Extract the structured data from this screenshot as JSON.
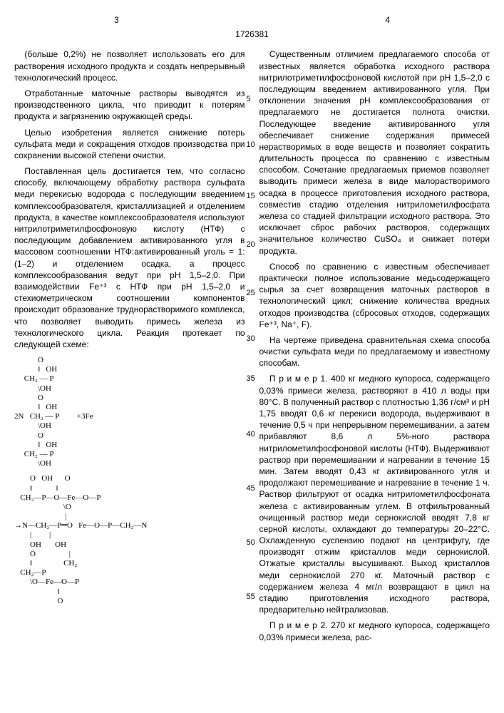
{
  "page_left_num": "3",
  "page_right_num": "4",
  "patent_number": "1726381",
  "left": {
    "p1": "(больше 0,2%) не позволяет использовать его для растворения исходного продукта и создать непрерывный технологический процесс.",
    "p2": "Отработанные маточные растворы выводятся из производственного цикла, что приводит к потерям продукта и загрязнению окружающей среды.",
    "p3": "Целью изобретения является снижение потерь сульфата меди и сокращения отходов производства при сохранении высокой степени очистки.",
    "p4": "Поставленная цель достигается тем, что согласно способу, включающему обработку раствора сульфата меди перекисью водорода с последующим введением комплексообразователя, кристаллизацией и отделением продукта, в качестве комплексообразователя используют нитрилотриметилфосфоновую кислоту (НТФ) с последующим добавлением активированного угля в массовом соотношении НТФ:активированный уголь = 1:(1–2) и отделением осадка, а процесс комплексообразования ведут при pH 1,5–2,0. При взаимодействии Fe⁺³ с НТФ при pH 1,5–2,0 и стехиометрическом соотношении компонентов происходит образование труднорастворимого комплекса, что позволяет выводить примесь железа из технологического цикла. Реакция протекает по следующей схеме:",
    "chem1": "            O\n            ‖   OH\n     CH₂ — P\n            \\OH\n            O\n            ‖   OH\n2N   CH₂ — P         +3Fe\n            \\OH\n            O\n            ‖   OH\n     CH₂ — P\n            \\OH",
    "chem2": "        O   OH      O\n        ‖            ‖\n   CH₂—P—O—Fe—O—P\n                         \\O\n                          |\n→N—CH₂—P═O   Fe—O—P—CH₂—N\n        |         |\n        OH       OH\n        O                 |\n        ‖                CH₂\n   CH₂—P\n        \\O—Fe—O—P\n                      ‖\n                      O"
  },
  "right": {
    "p1": "Существенным отличием предлагаемого способа от известных является обработка исходного раствора нитрилотриметилфосфоновой кислотой при pH 1,5–2,0 с последующим введением активированного угля. При отклонении значения pH комплексообразования от предлагаемого не достигается полнота очистки. Последующее введение активированного угля обеспечивает снижение содержания примесей нерастворимых в воде веществ и позволяет сократить длительность процесса по сравнению с известным способом. Сочетание предлагаемых приемов позволяет выводить примеси железа в виде малорастворимого осадка в процессе приготовления исходного раствора, совместив стадию отделения нитрилометилфосфата железа со стадией фильтрации исходного раствора. Это исключает сброс рабочих растворов, содержащих значительное количество CuSO₄ и снижает потери продукта.",
    "p2": "Способ по сравнению с известным обеспечивает практически полное использование медьсодержащего сырья за счет возвращения маточных растворов в технологический цикл; снижение количества вредных отходов производства (сбросовых отходов, содержащих Fe⁺³, Na⁺, F).",
    "p3": "На чертеже приведена сравнительная схема способа очистки сульфата меди по предлагаемому и известному способам.",
    "p4": "П р и м е р 1. 400 кг медного купороса, содержащего 0,03% примеси железа, растворяют в 410 л воды при 80°С. В полученный раствор с плотностью 1,36 г/см³ и pH 1,75 вводят 0,6 кг перекиси водорода, выдерживают в течение 0,5 ч при непрерывном перемешивании, а затем прибавляют 8,6 л 5%-ного раствора нитрилометилфосфоновой кислоты (НТФ). Выдерживают раствор при перемешивании и нагревании в течение 15 мин. Затем вводят 0,43 кг активированного угля и продолжают перемешивание и нагревание в течение 1 ч. Раствор фильтруют от осадка нитрилометилфосфоната железа с активированным углем. В отфильтрованный очищенный раствор меди сернокислой вводят 7,8 кг серной кислоты, охлаждают до температуры 20–22°С. Охлажденную суспензию подают на центрифугу, где производят отжим кристаллов меди сернокислой. Отжатые кристаллы высушивают. Выход кристаллов меди сернокислой 270 кг. Маточный раствор с содержанием железа 4 мг/л возвращают в цикл на стадию приготовления исходного раствора, предварительно нейтрализовав.",
    "p5": "П р и м е р 2. 270 кг медного купороса, содержащего 0,03% примеси железа, рас-"
  },
  "line_numbers": [
    "5",
    "10",
    "15",
    "20",
    "25",
    "30",
    "35",
    "40",
    "45",
    "50",
    "55"
  ]
}
